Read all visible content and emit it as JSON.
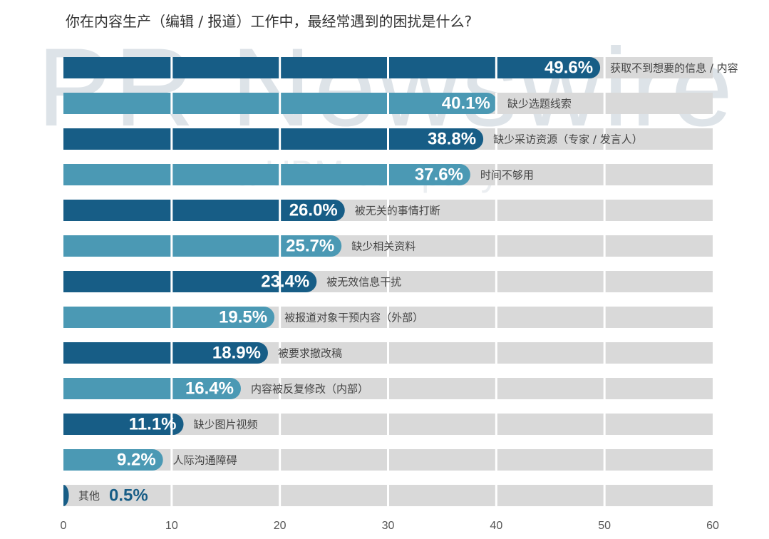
{
  "chart_data": {
    "type": "bar",
    "orientation": "horizontal",
    "title": "你在内容生产（编辑 / 报道）工作中，最经常遇到的困扰是什么?",
    "categories": [
      "获取不到想要的信息 / 内容",
      "缺少选题线索",
      "缺少采访资源（专家 / 发言人）",
      "时间不够用",
      "被无关的事情打断",
      "缺少相关资料",
      "被无效信息干扰",
      "被报道对象干预内容（外部）",
      "被要求撤改稿",
      "内容被反复修改（内部）",
      "缺少图片视频",
      "人际沟通障碍",
      "其他"
    ],
    "values": [
      49.6,
      40.1,
      38.8,
      37.6,
      26.0,
      25.7,
      23.4,
      19.5,
      18.9,
      16.4,
      11.1,
      9.2,
      0.5
    ],
    "value_labels": [
      "49.6%",
      "40.1%",
      "38.8%",
      "37.6%",
      "26.0%",
      "25.7%",
      "23.4%",
      "19.5%",
      "18.9%",
      "16.4%",
      "11.1%",
      "9.2%",
      "0.5%"
    ],
    "x_ticks": [
      "0",
      "10",
      "20",
      "30",
      "40",
      "50",
      "60"
    ],
    "xlim": [
      0,
      60
    ],
    "xlabel": "",
    "ylabel": "",
    "grid": true,
    "colors": {
      "dark": "#175d86",
      "light": "#4b99b4",
      "track": "#d9d9d9",
      "label": "#444444",
      "value_on_track": "#175d86",
      "tick": "#555555"
    }
  },
  "watermark": {
    "main": "PR Newswire",
    "sub": "a UBM company"
  }
}
